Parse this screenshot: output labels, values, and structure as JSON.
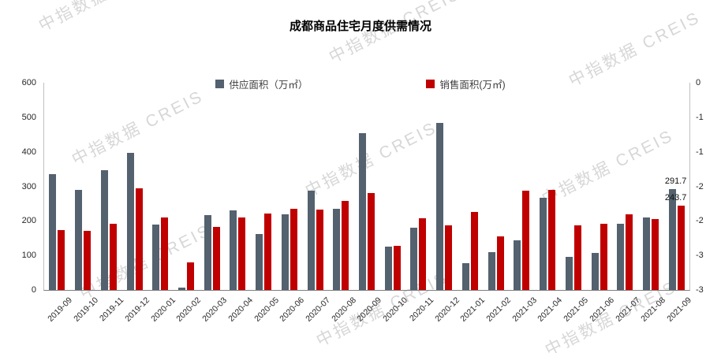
{
  "title": "成都商品住宅月度供需情况",
  "watermark": {
    "text": "中指数据 CREIS"
  },
  "legend": [
    {
      "label": "供应面积（万㎡）",
      "color": "#54616e"
    },
    {
      "label": "销售面积(万㎡)",
      "color": "#c00000"
    }
  ],
  "chart_data": {
    "type": "bar",
    "title": "成都商品住宅月度供需情况",
    "categories": [
      "2019-09",
      "2019-10",
      "2019-11",
      "2019-12",
      "2020-01",
      "2020-02",
      "2020-03",
      "2020-04",
      "2020-05",
      "2020-06",
      "2020-07",
      "2020-08",
      "2020-09",
      "2020-10",
      "2020-11",
      "2020-12",
      "2021-01",
      "2021-02",
      "2021-03",
      "2021-04",
      "2021-05",
      "2021-06",
      "2021-07",
      "2021-08",
      "2021-09"
    ],
    "series": [
      {
        "name": "供应面积（万㎡）",
        "color": "#54616e",
        "values": [
          335,
          290,
          348,
          398,
          190,
          8,
          216,
          230,
          161,
          220,
          288,
          235,
          455,
          125,
          180,
          483,
          78,
          110,
          143,
          268,
          97,
          108,
          192,
          210,
          291.7
        ]
      },
      {
        "name": "销售面积(万㎡)",
        "color": "#c00000",
        "values": [
          174,
          171,
          192,
          295,
          210,
          80,
          182,
          210,
          221,
          235,
          232,
          257,
          281,
          128,
          208,
          188,
          225,
          155,
          287,
          290,
          188,
          192,
          218,
          205,
          243.7
        ]
      }
    ],
    "left_axis": {
      "min": 0,
      "max": 600,
      "ticks": [
        "600",
        "500",
        "400",
        "300",
        "200",
        "100",
        "0"
      ]
    },
    "right_axis": {
      "ticks": [
        "0",
        "-1",
        "-1",
        "-2",
        "-2",
        "-3",
        "-3"
      ]
    },
    "annotations": [
      {
        "text": "291.7",
        "series": 0,
        "category": "2021-09"
      },
      {
        "text": "243.7",
        "series": 1,
        "category": "2021-09"
      }
    ],
    "grid": false,
    "legend_position": "top",
    "xlabel": "",
    "ylabel": ""
  }
}
